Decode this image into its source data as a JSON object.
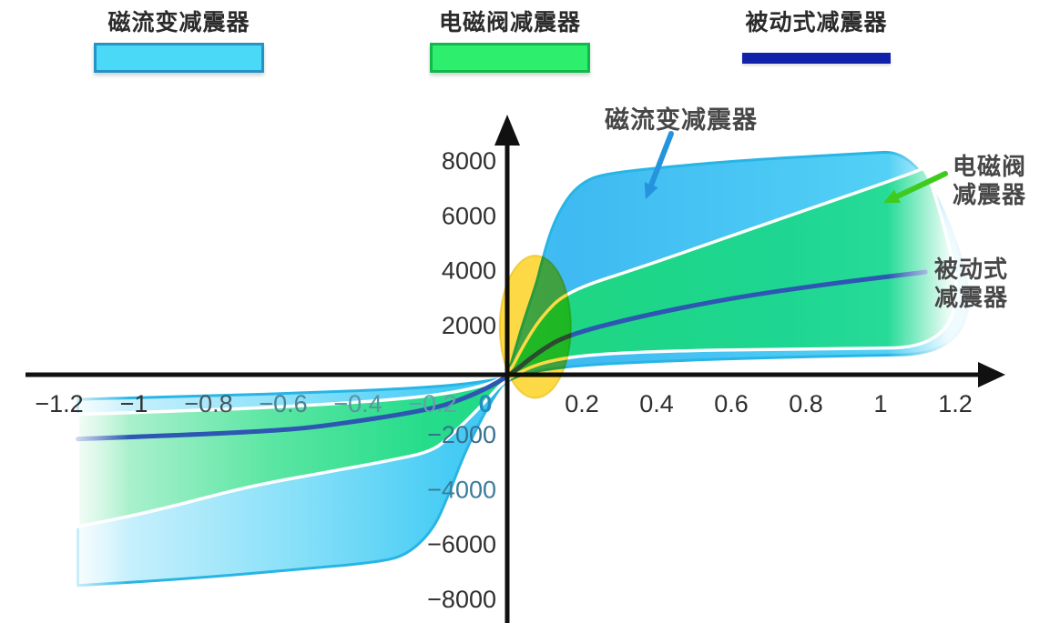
{
  "legend": {
    "items": [
      {
        "label": "磁流变减震器",
        "swatch": "box",
        "fill": "#4ad9f7",
        "border": "#2493c6"
      },
      {
        "label": "电磁阀减震器",
        "swatch": "box",
        "fill": "#2eee6e",
        "border": "#11b94a"
      },
      {
        "label": "被动式减震器",
        "swatch": "line",
        "fill": "#1122aa",
        "border": "#1122aa"
      }
    ]
  },
  "annotations": [
    {
      "id": "mr",
      "text": "磁流变减震器",
      "color": "#474747",
      "arrow_color": "#2693dd"
    },
    {
      "id": "valve",
      "text": "电磁阀\n减震器",
      "color": "#474747",
      "arrow_color": "#3ecb1e"
    },
    {
      "id": "passive",
      "text": "被动式\n减震器",
      "color": "#474747",
      "arrow_color": null
    }
  ],
  "chart_data": {
    "type": "area",
    "title": "",
    "xlabel": "",
    "ylabel": "",
    "xlim": [
      -1.3,
      1.45
    ],
    "ylim": [
      -9200,
      9500
    ],
    "grid": false,
    "axis_color": "#111111",
    "x_ticks": [
      {
        "value": -1.2,
        "label": "−1.2",
        "color": "#2f2f2f"
      },
      {
        "value": -1.0,
        "label": "−1",
        "color": "#2f2f2f"
      },
      {
        "value": -0.8,
        "label": "−0.8",
        "color": "#45555c"
      },
      {
        "value": -0.6,
        "label": "−0.6",
        "color": "#4f7f90"
      },
      {
        "value": -0.4,
        "label": "−0.4",
        "color": "#5c92a2"
      },
      {
        "value": -0.2,
        "label": "−0.2",
        "color": "#679dac"
      },
      {
        "value": 0,
        "label": "0",
        "color": "#1e8fbe"
      },
      {
        "value": 0.2,
        "label": "0.2",
        "color": "#2f2f2f"
      },
      {
        "value": 0.4,
        "label": "0.4",
        "color": "#2f2f2f"
      },
      {
        "value": 0.6,
        "label": "0.6",
        "color": "#2f2f2f"
      },
      {
        "value": 0.8,
        "label": "0.8",
        "color": "#2f2f2f"
      },
      {
        "value": 1.0,
        "label": "1",
        "color": "#2f2f2f"
      },
      {
        "value": 1.2,
        "label": "1.2",
        "color": "#2f2f2f"
      }
    ],
    "y_ticks": [
      {
        "value": 8000,
        "label": "8000",
        "color": "#2f2f2f"
      },
      {
        "value": 6000,
        "label": "6000",
        "color": "#2f2f2f"
      },
      {
        "value": 4000,
        "label": "4000",
        "color": "#2f2f2f"
      },
      {
        "value": 2000,
        "label": "2000",
        "color": "#2f2f2f"
      },
      {
        "value": -2000,
        "label": "−2000",
        "color": "#38708f"
      },
      {
        "value": -4000,
        "label": "−4000",
        "color": "#3a7d9a"
      },
      {
        "value": -6000,
        "label": "−6000",
        "color": "#2f2f2f"
      },
      {
        "value": -8000,
        "label": "−8000",
        "color": "#2f2f2f"
      }
    ],
    "series": [
      {
        "name": "磁流变减震器",
        "type": "band",
        "edge_color": "#28b5e5",
        "fill_stops": [
          [
            0,
            "#d8f4fd"
          ],
          [
            0.25,
            "#7fdef8"
          ],
          [
            0.42,
            "#3cc9f4"
          ],
          [
            0.55,
            "#35b6f1"
          ],
          [
            0.75,
            "#3fc3f3"
          ],
          [
            1,
            "#4fd4f6"
          ]
        ],
        "upper": [
          [
            -1.15,
            -800
          ],
          [
            -0.8,
            -680
          ],
          [
            -0.5,
            -540
          ],
          [
            -0.3,
            -430
          ],
          [
            -0.15,
            -300
          ],
          [
            -0.05,
            -120
          ],
          [
            0,
            0
          ],
          [
            0.015,
            700
          ],
          [
            0.04,
            1900
          ],
          [
            0.08,
            3500
          ],
          [
            0.09,
            4090
          ],
          [
            0.12,
            5520
          ],
          [
            0.16,
            6550
          ],
          [
            0.2,
            7100
          ],
          [
            0.25,
            7420
          ],
          [
            0.4,
            7650
          ],
          [
            0.6,
            7900
          ],
          [
            0.9,
            8150
          ],
          [
            1.12,
            8300
          ]
        ],
        "lower": [
          [
            -1.15,
            -7600
          ],
          [
            -0.85,
            -7350
          ],
          [
            -0.55,
            -7000
          ],
          [
            -0.35,
            -6750
          ],
          [
            -0.27,
            -6500
          ],
          [
            -0.2,
            -5600
          ],
          [
            -0.16,
            -4400
          ],
          [
            -0.12,
            -2950
          ],
          [
            -0.08,
            -1800
          ],
          [
            -0.04,
            -800
          ],
          [
            0,
            0
          ],
          [
            0.15,
            420
          ],
          [
            0.45,
            620
          ],
          [
            0.8,
            760
          ],
          [
            1.3,
            880
          ]
        ]
      },
      {
        "name": "电磁阀减震器",
        "type": "band",
        "edge_color": "#ffffff",
        "fill_stops": [
          [
            0,
            "#c4f4da"
          ],
          [
            0.22,
            "#58e69e"
          ],
          [
            0.4,
            "#22dd84"
          ],
          [
            0.58,
            "#1cd77e"
          ],
          [
            0.8,
            "#1bd68c"
          ],
          [
            1,
            "#2adf97"
          ]
        ],
        "upper": [
          [
            -1.15,
            -1350
          ],
          [
            -0.8,
            -1200
          ],
          [
            -0.5,
            -1000
          ],
          [
            -0.25,
            -750
          ],
          [
            -0.1,
            -450
          ],
          [
            0,
            0
          ],
          [
            0.04,
            1100
          ],
          [
            0.09,
            2200
          ],
          [
            0.16,
            3150
          ],
          [
            0.36,
            4030
          ],
          [
            0.64,
            5370
          ],
          [
            1.09,
            7480
          ],
          [
            1.13,
            7750
          ]
        ],
        "lower": [
          [
            -1.15,
            -5450
          ],
          [
            -0.95,
            -4900
          ],
          [
            -0.7,
            -4000
          ],
          [
            -0.5,
            -3500
          ],
          [
            -0.32,
            -3050
          ],
          [
            -0.2,
            -2700
          ],
          [
            -0.15,
            -2100
          ],
          [
            -0.11,
            -1600
          ],
          [
            -0.06,
            -900
          ],
          [
            0,
            0
          ],
          [
            0.12,
            700
          ],
          [
            0.35,
            950
          ],
          [
            0.8,
            1050
          ],
          [
            1.25,
            1100
          ]
        ]
      },
      {
        "name": "被动式减震器",
        "type": "line",
        "color": "#2d57b2",
        "points": [
          [
            -1.15,
            -2250
          ],
          [
            -0.85,
            -2100
          ],
          [
            -0.63,
            -1950
          ],
          [
            -0.5,
            -1800
          ],
          [
            -0.21,
            -1200
          ],
          [
            -0.1,
            -700
          ],
          [
            0,
            0
          ],
          [
            0.08,
            900
          ],
          [
            0.16,
            1550
          ],
          [
            0.36,
            2250
          ],
          [
            0.6,
            2900
          ],
          [
            0.85,
            3400
          ],
          [
            1.12,
            3850
          ]
        ]
      }
    ],
    "highlight_ellipse": {
      "cx": 0.075,
      "cy": 1850,
      "rx": 0.095,
      "ry": 2600,
      "color": "#fcd116"
    }
  }
}
